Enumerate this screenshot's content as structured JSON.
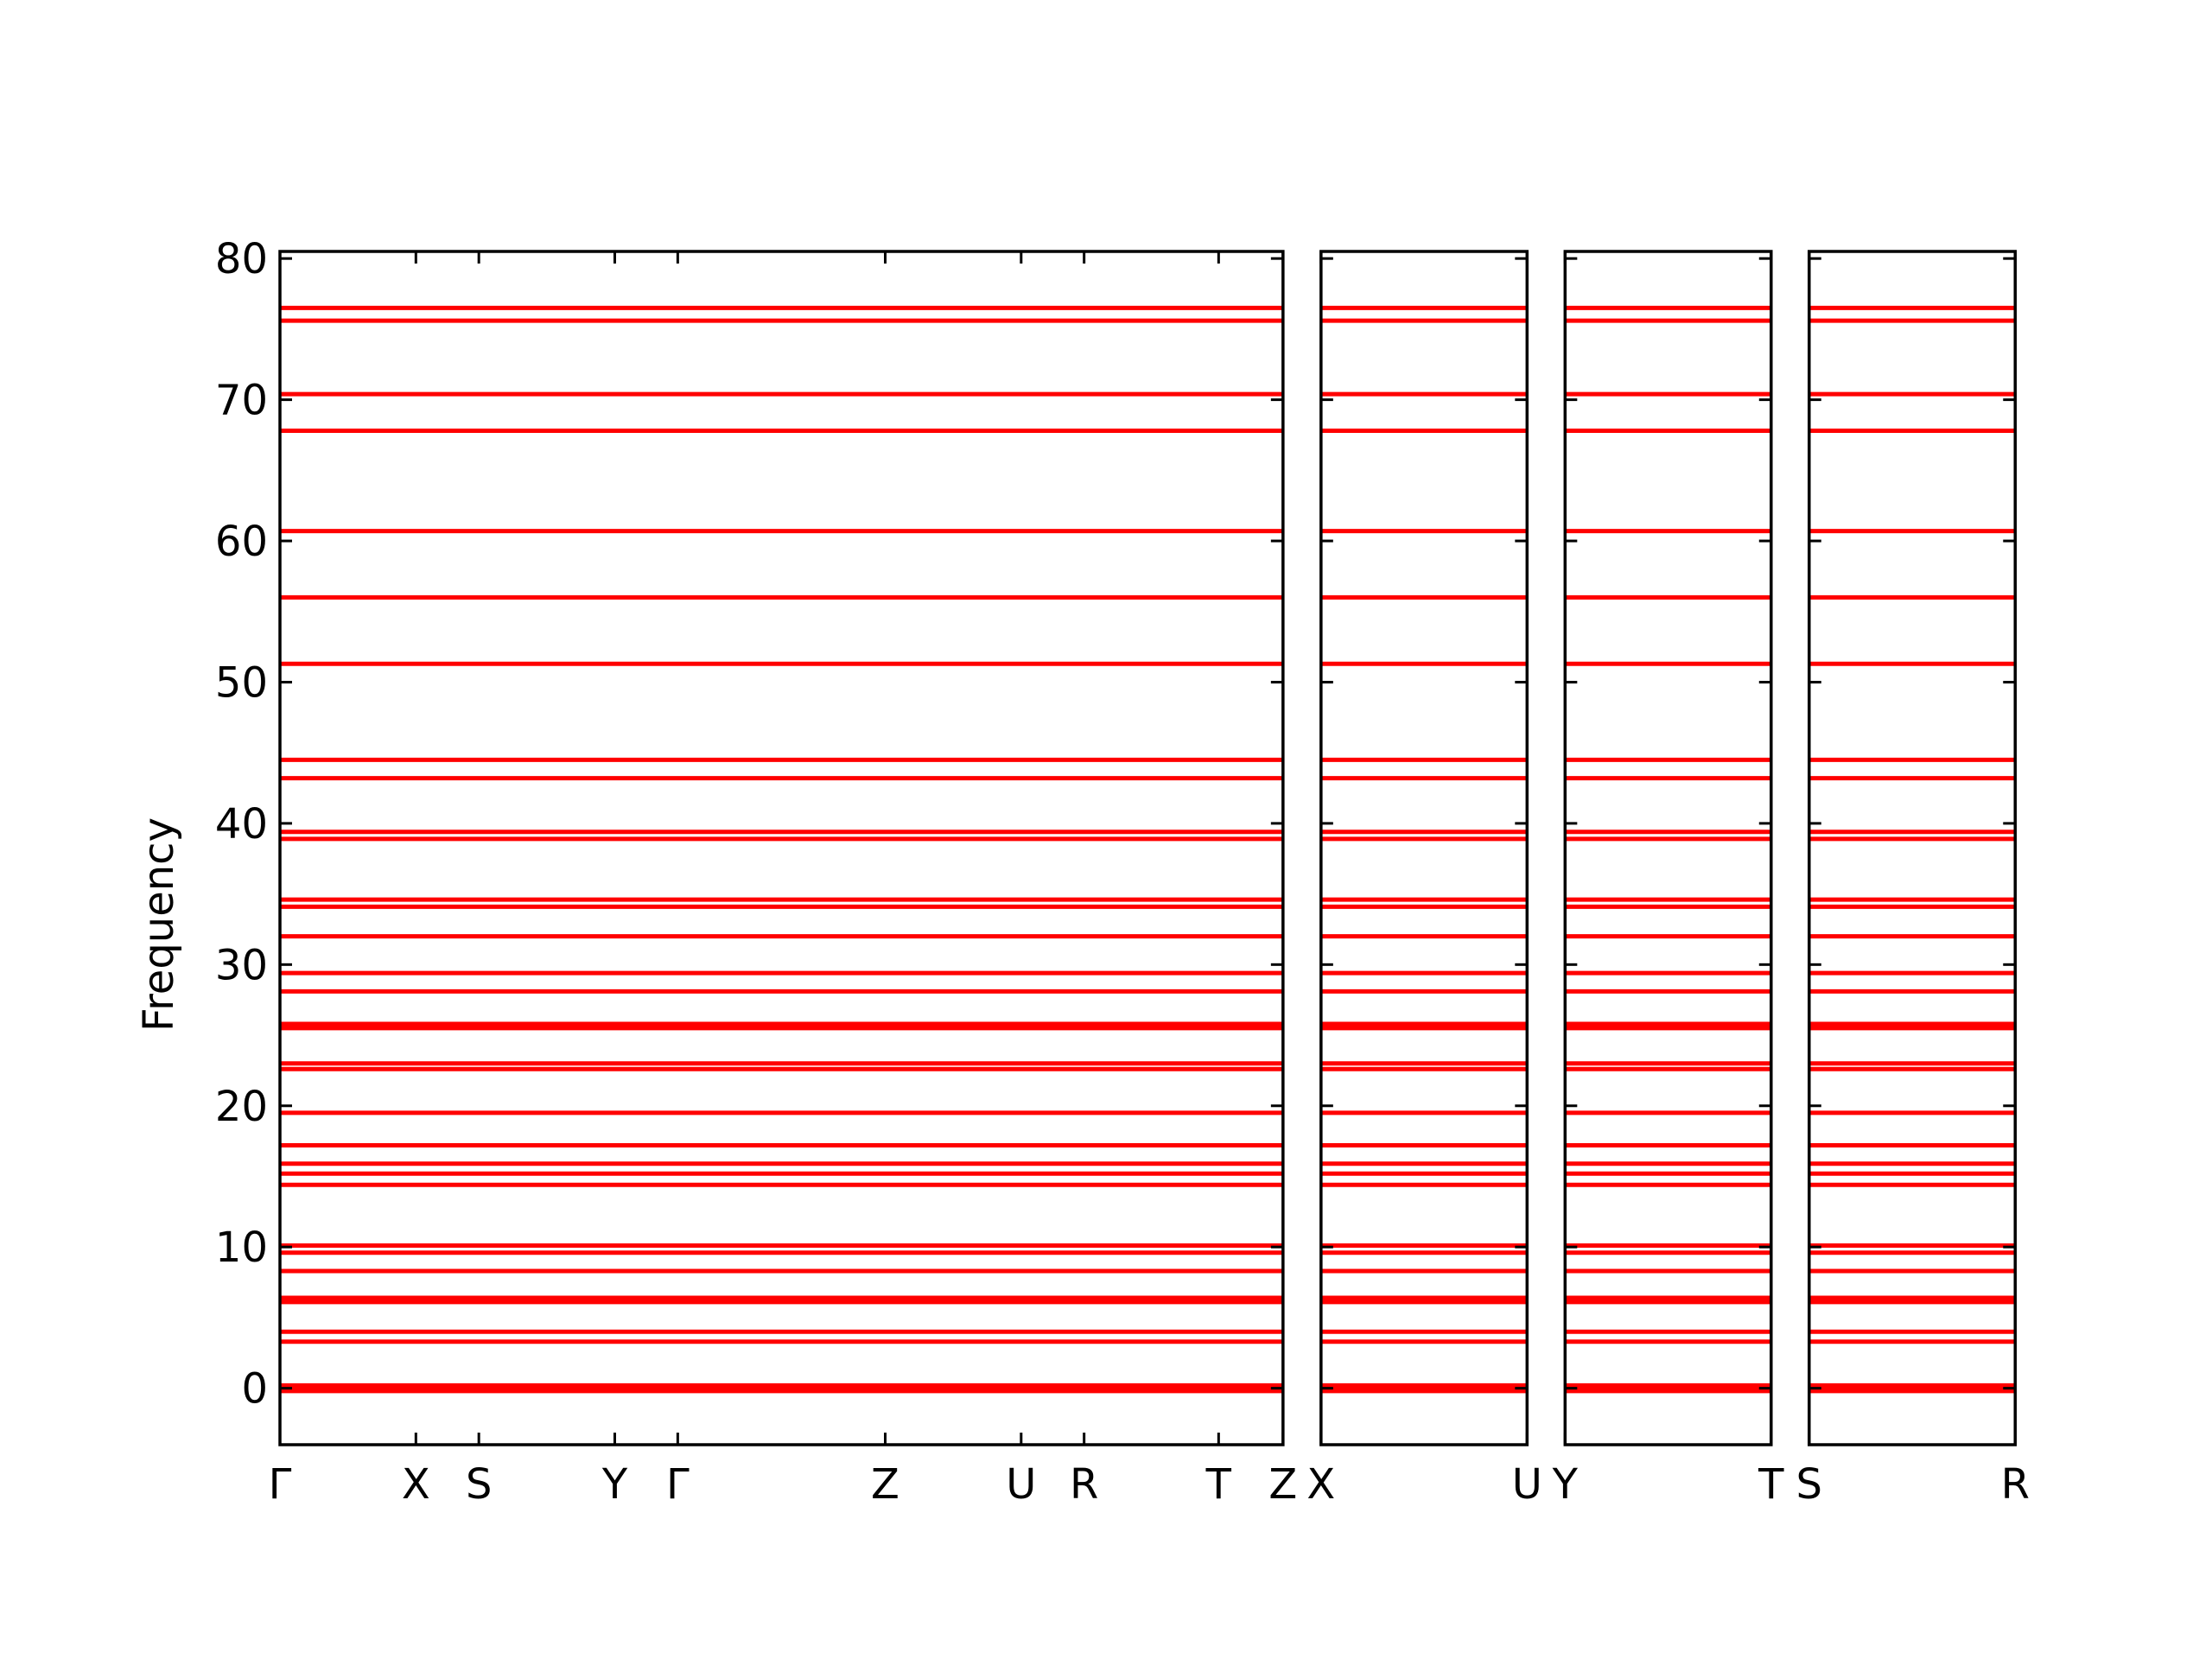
{
  "chart_data": {
    "type": "band-structure",
    "ylabel": "Frequency",
    "ylim": [
      -4,
      80.5
    ],
    "yticks": [
      0,
      10,
      20,
      30,
      40,
      50,
      60,
      70,
      80
    ],
    "color": "#ff0000",
    "bands": [
      76.5,
      75.6,
      70.4,
      67.8,
      60.7,
      56.0,
      51.3,
      44.5,
      43.2,
      39.4,
      38.9,
      34.6,
      34.1,
      32.0,
      29.4,
      28.1,
      25.8,
      25.5,
      23.0,
      22.6,
      19.5,
      17.2,
      15.9,
      15.2,
      14.4,
      10.1,
      9.6,
      8.3,
      6.4,
      6.1,
      4.0,
      3.3,
      0.2,
      0,
      -0.2
    ],
    "panels": [
      {
        "xlim": [
          0,
          7.01
        ],
        "xticks": [
          {
            "value": 0,
            "label": "Γ"
          },
          {
            "value": 0.95,
            "label": "X"
          },
          {
            "value": 1.39,
            "label": "S"
          },
          {
            "value": 2.34,
            "label": "Y"
          },
          {
            "value": 2.78,
            "label": "Γ"
          },
          {
            "value": 4.23,
            "label": "Z"
          },
          {
            "value": 5.18,
            "label": "U"
          },
          {
            "value": 5.62,
            "label": "R"
          },
          {
            "value": 6.56,
            "label": "T"
          },
          {
            "value": 7.01,
            "label": "Z"
          }
        ]
      },
      {
        "xlim": [
          7.01,
          8.45
        ],
        "xticks": [
          {
            "value": 7.01,
            "label": "X"
          },
          {
            "value": 8.45,
            "label": "U"
          }
        ]
      },
      {
        "xlim": [
          8.45,
          9.89
        ],
        "xticks": [
          {
            "value": 8.45,
            "label": "Y"
          },
          {
            "value": 9.89,
            "label": "T"
          }
        ]
      },
      {
        "xlim": [
          9.89,
          11.33
        ],
        "xticks": [
          {
            "value": 9.89,
            "label": "S"
          },
          {
            "value": 11.33,
            "label": "R"
          }
        ]
      }
    ]
  }
}
